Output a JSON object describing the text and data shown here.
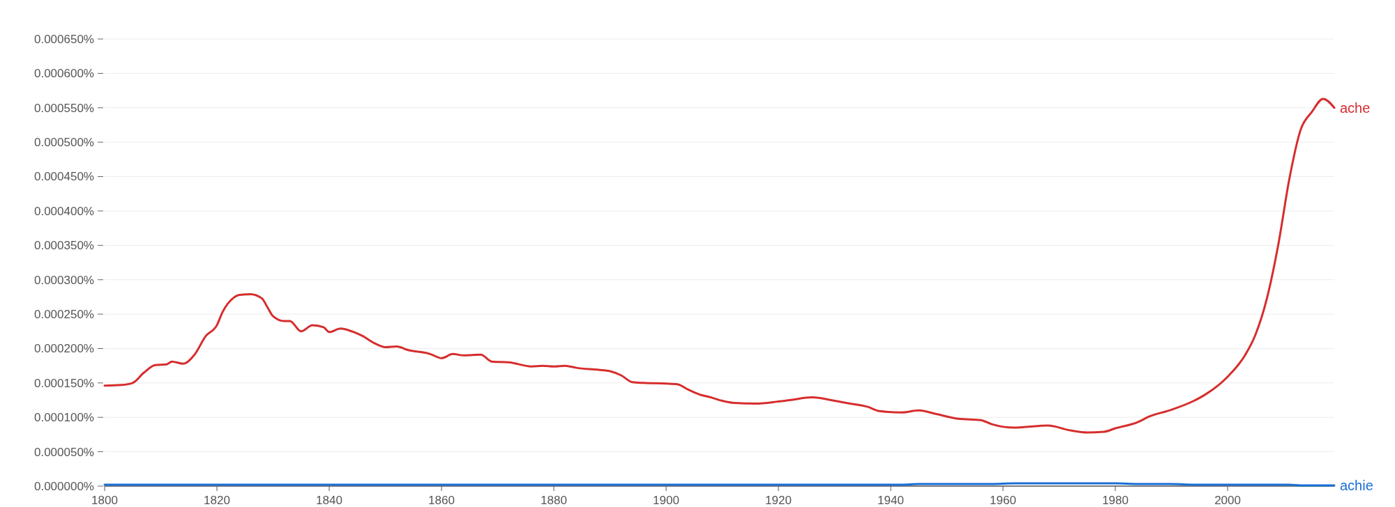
{
  "chart_data": {
    "type": "line",
    "x": [
      1800,
      1803,
      1805,
      1807,
      1809,
      1811,
      1812,
      1814,
      1816,
      1818,
      1820,
      1821,
      1823,
      1824,
      1826,
      1828,
      1829,
      1830,
      1832,
      1833,
      1835,
      1837,
      1839,
      1840,
      1842,
      1844,
      1846,
      1848,
      1850,
      1852,
      1854,
      1858,
      1860,
      1862,
      1864,
      1867,
      1869,
      1872,
      1876,
      1878,
      1880,
      1882,
      1884,
      1888,
      1890,
      1892,
      1894,
      1896,
      1900,
      1902,
      1904,
      1906,
      1908,
      1910,
      1912,
      1916,
      1920,
      1922,
      1926,
      1930,
      1932,
      1936,
      1938,
      1942,
      1945,
      1948,
      1952,
      1956,
      1958,
      1962,
      1964,
      1968,
      1972,
      1975,
      1978,
      1980,
      1984,
      1986,
      1990,
      1994,
      1996,
      2000,
      2003,
      2005,
      2007,
      2009,
      2011,
      2013,
      2015,
      2017,
      2019
    ],
    "series": [
      {
        "name": "ache",
        "color": "#d62d2d",
        "values": [
          0.000146,
          0.000147,
          0.00015,
          0.000165,
          0.000176,
          0.000177,
          0.000181,
          0.000178,
          0.000191,
          0.000218,
          0.000234,
          0.000253,
          0.000274,
          0.000278,
          0.000279,
          0.000273,
          0.00026,
          0.000247,
          0.00024,
          0.00024,
          0.000225,
          0.000234,
          0.000231,
          0.000224,
          0.000229,
          0.000225,
          0.000218,
          0.000208,
          0.000202,
          0.000203,
          0.000198,
          0.000192,
          0.000186,
          0.000192,
          0.00019,
          0.000191,
          0.000181,
          0.00018,
          0.000174,
          0.000175,
          0.000174,
          0.000175,
          0.000172,
          0.000169,
          0.000167,
          0.000161,
          0.000151,
          0.00015,
          0.000149,
          0.000148,
          0.00014,
          0.000133,
          0.000129,
          0.000124,
          0.000121,
          0.00012,
          0.000123,
          0.000125,
          0.000129,
          0.000124,
          0.000121,
          0.000115,
          0.000109,
          0.000107,
          0.00011,
          0.000105,
          9.8e-05,
          9.6e-05,
          9e-05,
          8.5e-05,
          8.6e-05,
          8.8e-05,
          8.1e-05,
          7.8e-05,
          7.9e-05,
          8.4e-05,
          9.3e-05,
          0.000101,
          0.000111,
          0.000124,
          0.000133,
          0.000159,
          0.000189,
          0.000221,
          0.000273,
          0.00035,
          0.000447,
          0.000518,
          0.000544,
          0.000563,
          0.00055
        ]
      },
      {
        "name": "achie",
        "color": "#1a6fd6",
        "values": [
          2e-06,
          2e-06,
          2e-06,
          2e-06,
          2e-06,
          2e-06,
          2e-06,
          2e-06,
          2e-06,
          2e-06,
          2e-06,
          2e-06,
          2e-06,
          2e-06,
          2e-06,
          2e-06,
          2e-06,
          2e-06,
          2e-06,
          2e-06,
          2e-06,
          2e-06,
          2e-06,
          2e-06,
          2e-06,
          2e-06,
          2e-06,
          2e-06,
          2e-06,
          2e-06,
          2e-06,
          2e-06,
          2e-06,
          2e-06,
          2e-06,
          2e-06,
          2e-06,
          2e-06,
          2e-06,
          2e-06,
          2e-06,
          2e-06,
          2e-06,
          2e-06,
          2e-06,
          2e-06,
          2e-06,
          2e-06,
          2e-06,
          2e-06,
          2e-06,
          2e-06,
          2e-06,
          2e-06,
          2e-06,
          2e-06,
          2e-06,
          2e-06,
          2e-06,
          2e-06,
          2e-06,
          2e-06,
          2e-06,
          2e-06,
          3e-06,
          3e-06,
          3e-06,
          3e-06,
          3e-06,
          4e-06,
          4e-06,
          4e-06,
          4e-06,
          4e-06,
          4e-06,
          4e-06,
          3e-06,
          3e-06,
          3e-06,
          2e-06,
          2e-06,
          2e-06,
          2e-06,
          2e-06,
          2e-06,
          2e-06,
          2e-06,
          1e-06,
          1e-06,
          1e-06,
          1e-06
        ]
      }
    ],
    "xlim": [
      1800,
      2019
    ],
    "xticks": [
      1800,
      1820,
      1840,
      1860,
      1880,
      1900,
      1920,
      1940,
      1960,
      1980,
      2000
    ],
    "ylim": [
      0,
      0.00065
    ],
    "yticks": [
      {
        "value": 0,
        "label": "0.000000%"
      },
      {
        "value": 5e-05,
        "label": "0.000050%"
      },
      {
        "value": 0.0001,
        "label": "0.000100%"
      },
      {
        "value": 0.00015,
        "label": "0.000150%"
      },
      {
        "value": 0.0002,
        "label": "0.000200%"
      },
      {
        "value": 0.00025,
        "label": "0.000250%"
      },
      {
        "value": 0.0003,
        "label": "0.000300%"
      },
      {
        "value": 0.00035,
        "label": "0.000350%"
      },
      {
        "value": 0.0004,
        "label": "0.000400%"
      },
      {
        "value": 0.00045,
        "label": "0.000450%"
      },
      {
        "value": 0.0005,
        "label": "0.000500%"
      },
      {
        "value": 0.00055,
        "label": "0.000550%"
      },
      {
        "value": 0.0006,
        "label": "0.000600%"
      },
      {
        "value": 0.00065,
        "label": "0.000650%"
      }
    ],
    "grid": "y",
    "legend": false
  }
}
